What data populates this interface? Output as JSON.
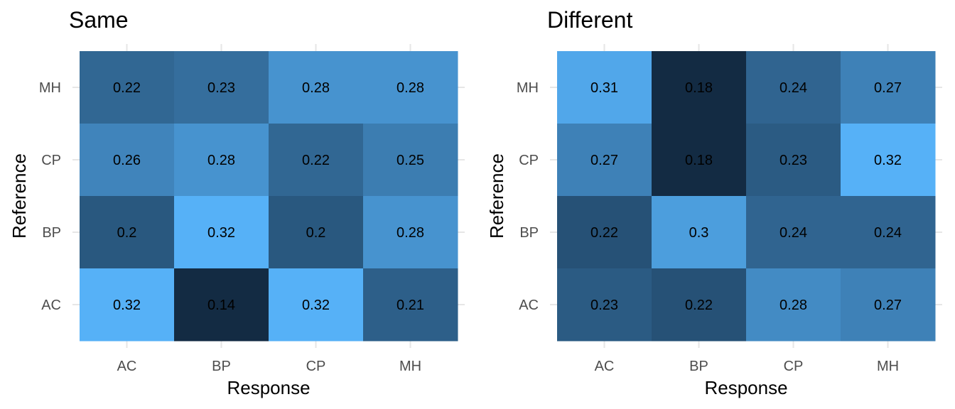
{
  "chart_data": [
    {
      "type": "heatmap",
      "title": "Same",
      "xlabel": "Response",
      "ylabel": "Reference",
      "x_categories": [
        "AC",
        "BP",
        "CP",
        "MH"
      ],
      "y_categories": [
        "AC",
        "BP",
        "CP",
        "MH"
      ],
      "values": [
        {
          "reference": "MH",
          "response": [
            "0.22",
            "0.23",
            "0.28",
            "0.28"
          ]
        },
        {
          "reference": "CP",
          "response": [
            "0.26",
            "0.28",
            "0.22",
            "0.25"
          ]
        },
        {
          "reference": "BP",
          "response": [
            "0.2",
            "0.32",
            "0.2",
            "0.28"
          ]
        },
        {
          "reference": "AC",
          "response": [
            "0.32",
            "0.14",
            "0.32",
            "0.21"
          ]
        }
      ],
      "color_scale": {
        "low": "#132B43",
        "high": "#56B1F7",
        "min": 0.14,
        "max": 0.32
      },
      "grid": true,
      "legend": "none"
    },
    {
      "type": "heatmap",
      "title": "Different",
      "xlabel": "Response",
      "ylabel": "Reference",
      "x_categories": [
        "AC",
        "BP",
        "CP",
        "MH"
      ],
      "y_categories": [
        "AC",
        "BP",
        "CP",
        "MH"
      ],
      "values": [
        {
          "reference": "MH",
          "response": [
            "0.31",
            "0.18",
            "0.24",
            "0.27"
          ]
        },
        {
          "reference": "CP",
          "response": [
            "0.27",
            "0.18",
            "0.23",
            "0.32"
          ]
        },
        {
          "reference": "BP",
          "response": [
            "0.22",
            "0.3",
            "0.24",
            "0.24"
          ]
        },
        {
          "reference": "AC",
          "response": [
            "0.23",
            "0.22",
            "0.28",
            "0.27"
          ]
        }
      ],
      "color_scale": {
        "low": "#132B43",
        "high": "#56B1F7",
        "min": 0.18,
        "max": 0.32
      },
      "grid": true,
      "legend": "none"
    }
  ]
}
